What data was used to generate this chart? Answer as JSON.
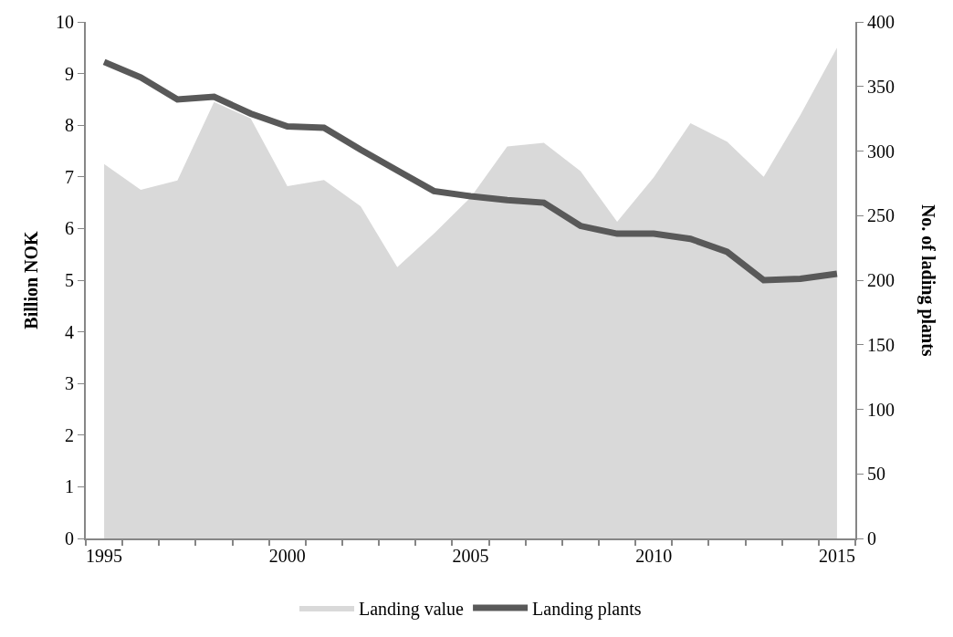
{
  "chart_data": {
    "type": "area",
    "ylabel": "Billion NOK",
    "y2label": "No. of lading plants",
    "x": [
      1995,
      1996,
      1997,
      1998,
      1999,
      2000,
      2001,
      2002,
      2003,
      2004,
      2005,
      2006,
      2007,
      2008,
      2009,
      2010,
      2011,
      2012,
      2013,
      2014,
      2015
    ],
    "series": [
      {
        "name": "Landing value",
        "color": "#d9d9d9",
        "values": [
          7.25,
          6.75,
          6.93,
          8.45,
          8.13,
          6.82,
          6.94,
          6.43,
          5.25,
          5.9,
          6.6,
          7.59,
          7.66,
          7.11,
          6.13,
          6.99,
          8.04,
          7.68,
          7.0,
          8.2,
          9.5
        ]
      },
      {
        "name": "Landing plants",
        "type": "line",
        "axis": "y2",
        "color": "#595959",
        "values": [
          369,
          357,
          340,
          342,
          329,
          319,
          318,
          301,
          285,
          269,
          265,
          262,
          260,
          242,
          236,
          236,
          232,
          222,
          200,
          201,
          205
        ]
      }
    ],
    "xlim": [
      1994.5,
      2015.5
    ],
    "xticks": [
      {
        "value": 1994.5,
        "label": null
      },
      1995,
      {
        "value": 1995.5,
        "label": null
      },
      {
        "value": 1996.5,
        "label": null
      },
      {
        "value": 1997.5,
        "label": null
      },
      {
        "value": 1998.5,
        "label": null
      },
      {
        "value": 1999.5,
        "label": null
      },
      2000,
      {
        "value": 2000.5,
        "label": null
      },
      {
        "value": 2001.5,
        "label": null
      },
      {
        "value": 2002.5,
        "label": null
      },
      {
        "value": 2003.5,
        "label": null
      },
      {
        "value": 2004.5,
        "label": null
      },
      2005,
      {
        "value": 2005.5,
        "label": null
      },
      {
        "value": 2006.5,
        "label": null
      },
      {
        "value": 2007.5,
        "label": null
      },
      {
        "value": 2008.5,
        "label": null
      },
      {
        "value": 2009.5,
        "label": null
      },
      2010,
      {
        "value": 2010.5,
        "label": null
      },
      {
        "value": 2011.5,
        "label": null
      },
      {
        "value": 2012.5,
        "label": null
      },
      {
        "value": 2013.5,
        "label": null
      },
      {
        "value": 2014.5,
        "label": null
      },
      2015,
      {
        "value": 2015.5,
        "label": null
      }
    ],
    "ylim": [
      0,
      10
    ],
    "yticks": [
      0,
      1,
      2,
      3,
      4,
      5,
      6,
      7,
      8,
      9,
      10
    ],
    "y2lim": [
      0,
      400
    ],
    "y2ticks": [
      0,
      50,
      100,
      150,
      200,
      250,
      300,
      350,
      400
    ],
    "legend": "bottom"
  }
}
